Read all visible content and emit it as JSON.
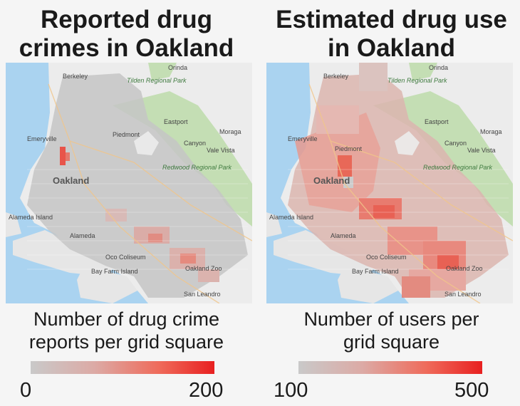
{
  "panels": [
    {
      "title_line1": "Reported drug",
      "title_line2": "crimes in Oakland",
      "legend_line1": "Number of drug crime",
      "legend_line2": "reports per grid square",
      "legend_min": "0",
      "legend_max": "200"
    },
    {
      "title_line1": "Estimated drug use",
      "title_line2": "in Oakland",
      "legend_line1": "Number of users per",
      "legend_line2": "grid square",
      "legend_min": "100",
      "legend_max": "500"
    }
  ],
  "map_labels": {
    "berkeley": "Berkeley",
    "emeryville": "Emeryville",
    "piedmont": "Piedmont",
    "oakland": "Oakland",
    "alameda_island": "Alameda Island",
    "alameda": "Alameda",
    "bay_farm": "Bay Farm Island",
    "san_leandro": "San Leandro",
    "canyon": "Canyon",
    "moraga": "Moraga",
    "orinda": "Orinda",
    "vale_vista": "Vale Vista",
    "eastport": "Eastport",
    "oakland_zoo": "Oakland Zoo",
    "oco_coliseum": "Oco Coliseum",
    "redwood_park": "Redwood Regional Park",
    "tilden_park": "Tilden Regional Park"
  },
  "colors": {
    "water": "#aad3f0",
    "land": "#ececec",
    "park": "#c4deb4",
    "grid_low": "#c9c9c9",
    "grid_high": "#e82020"
  }
}
